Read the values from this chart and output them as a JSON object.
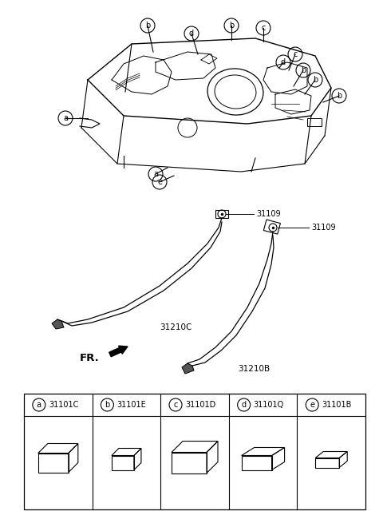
{
  "bg_color": "#ffffff",
  "lc": "#000000",
  "fig_w": 4.8,
  "fig_h": 6.55,
  "dpi": 100,
  "part_labels": [
    {
      "letter": "a",
      "code": "31101C"
    },
    {
      "letter": "b",
      "code": "31101E"
    },
    {
      "letter": "c",
      "code": "31101D"
    },
    {
      "letter": "d",
      "code": "31101Q"
    },
    {
      "letter": "e",
      "code": "31101B"
    }
  ]
}
